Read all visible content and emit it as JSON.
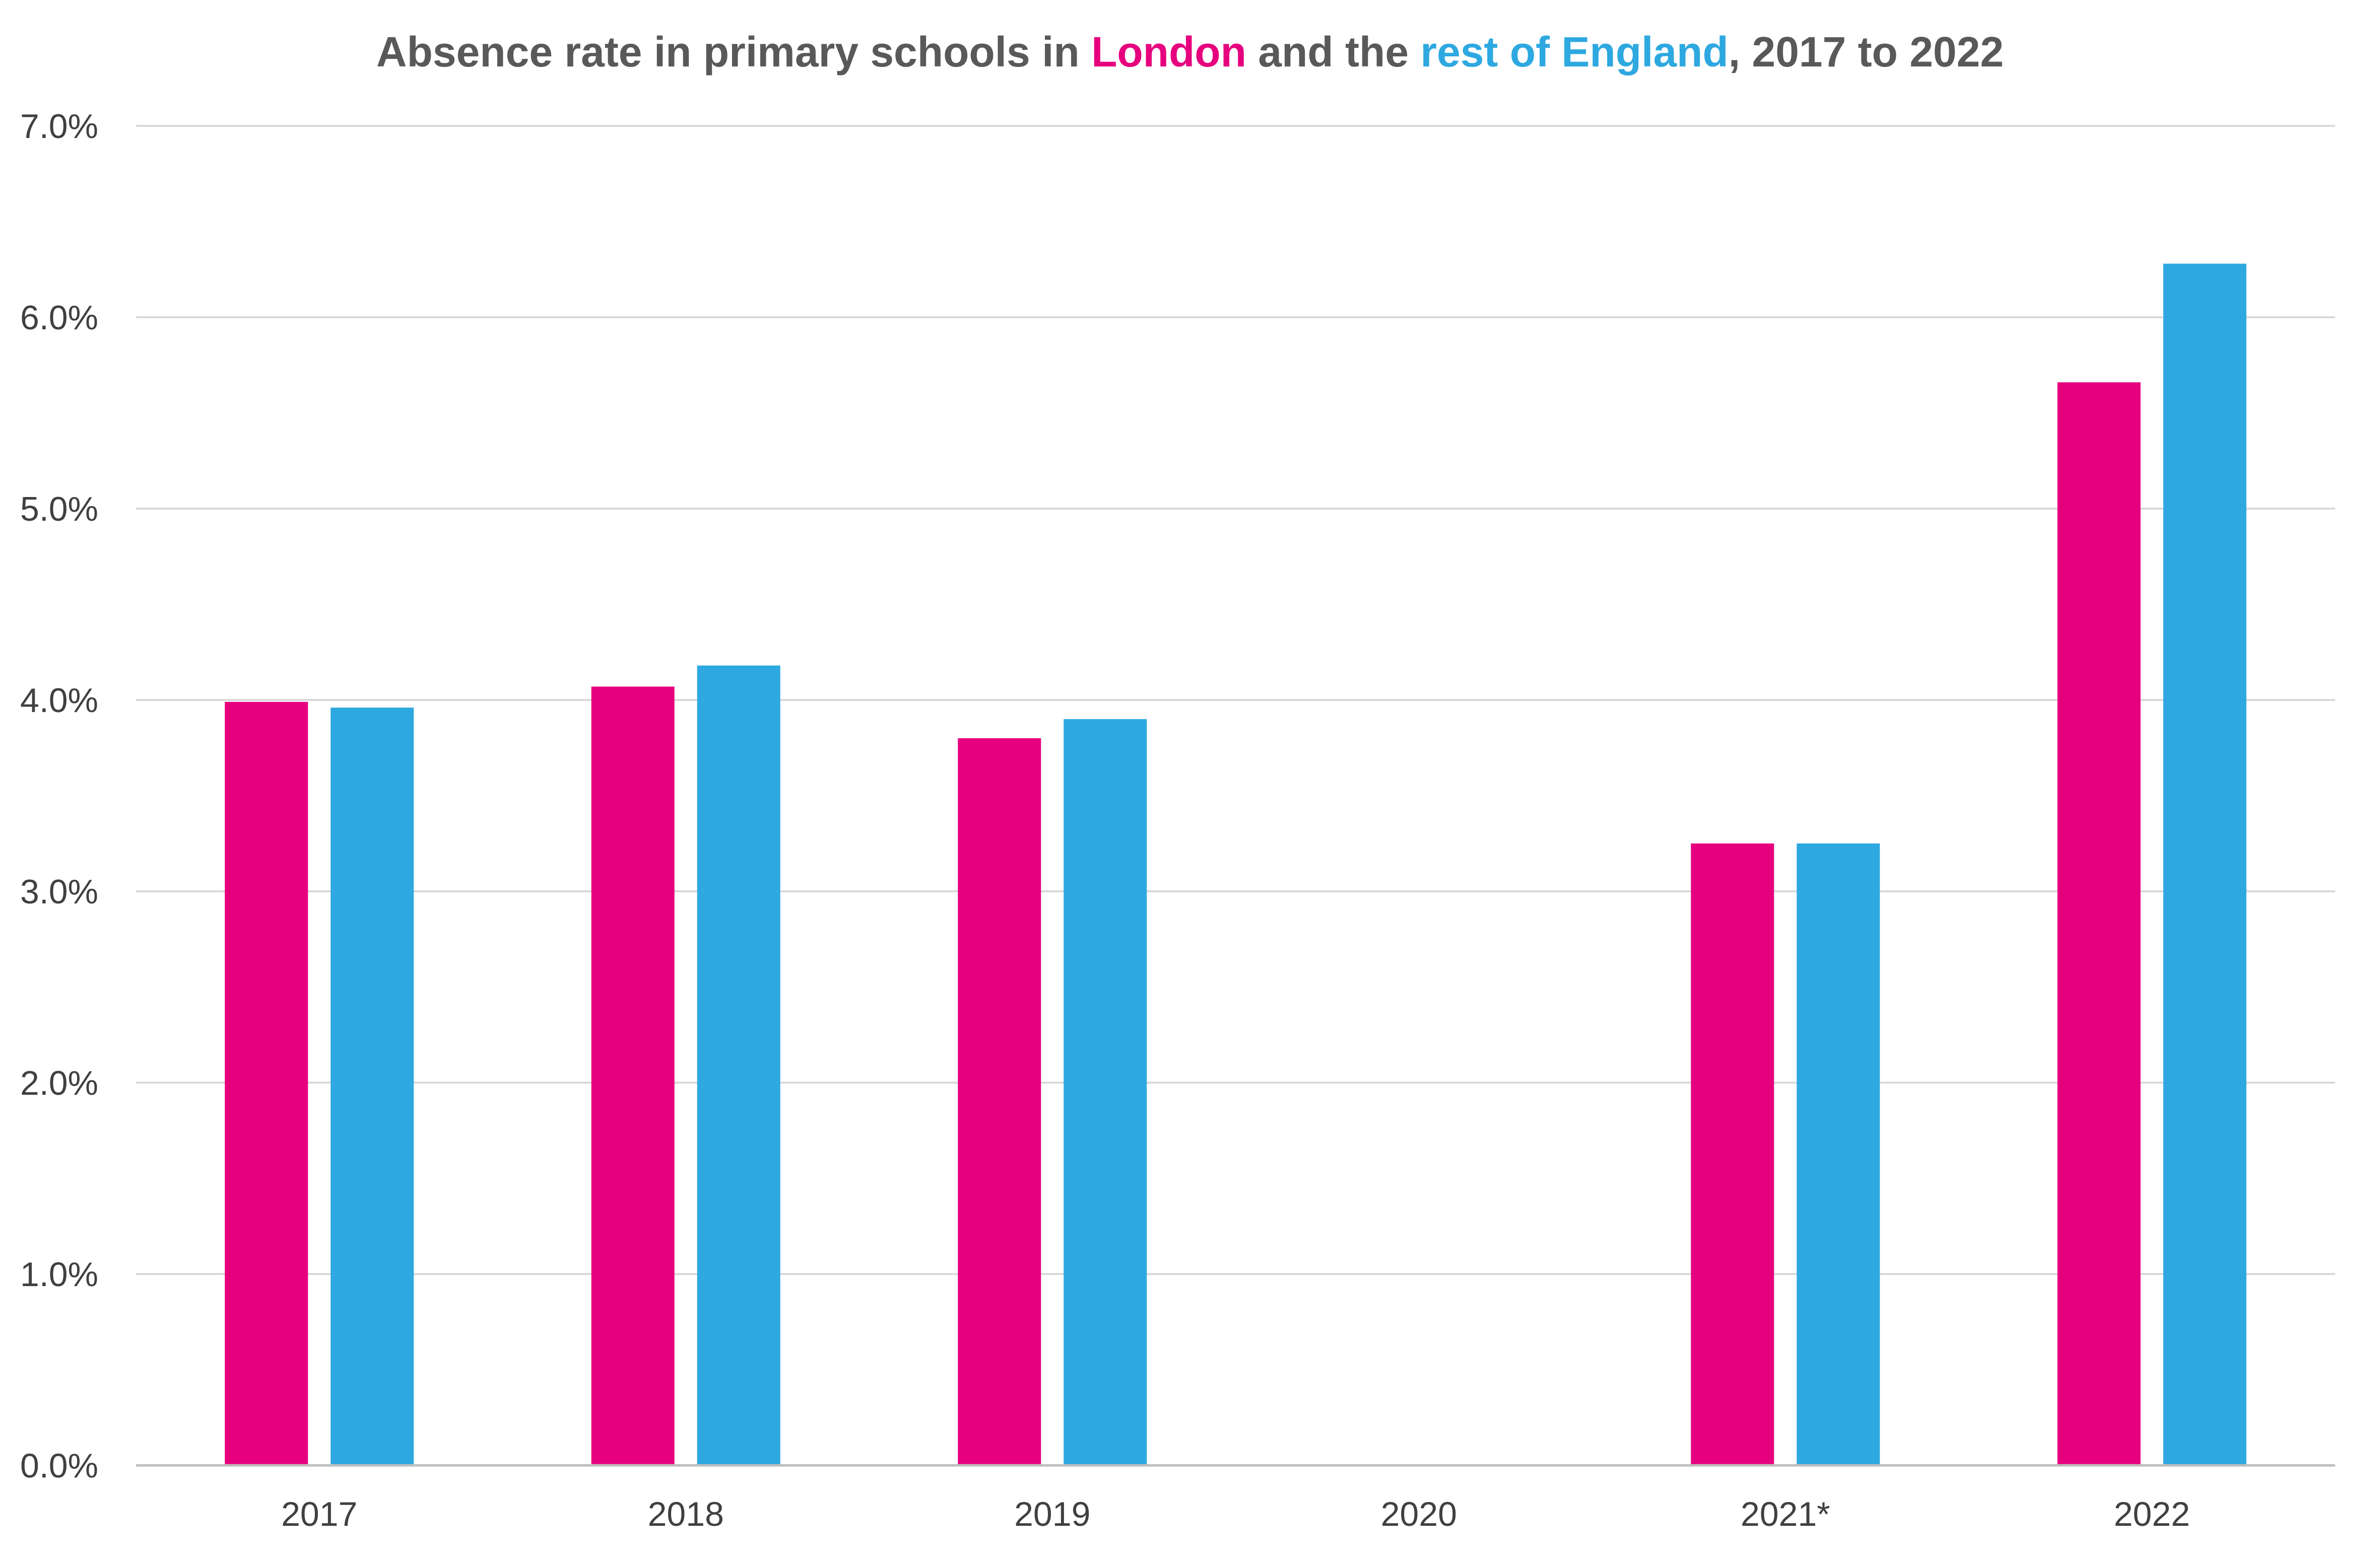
{
  "chart_data": {
    "type": "bar",
    "title": {
      "parts": [
        {
          "text": "Absence rate in primary schools in ",
          "role": "plain"
        },
        {
          "text": "London",
          "role": "s0"
        },
        {
          "text": " and the ",
          "role": "plain"
        },
        {
          "text": "rest of England",
          "role": "s1"
        },
        {
          "text": ", 2017 to 2022",
          "role": "plain"
        }
      ]
    },
    "categories": [
      "2017",
      "2018",
      "2019",
      "2020",
      "2021*",
      "2022"
    ],
    "series": [
      {
        "name": "London",
        "color": "#e6007e",
        "values": [
          3.99,
          4.07,
          3.8,
          null,
          3.25,
          5.66
        ]
      },
      {
        "name": "rest of England",
        "color": "#2ea8e0",
        "values": [
          3.96,
          4.18,
          3.9,
          null,
          3.25,
          6.28
        ]
      }
    ],
    "xlabel": "",
    "ylabel": "",
    "ylim": [
      0,
      7
    ],
    "yticks": [
      "0.0%",
      "1.0%",
      "2.0%",
      "3.0%",
      "4.0%",
      "5.0%",
      "6.0%",
      "7.0%"
    ],
    "grid": true,
    "legend": "none",
    "colors": {
      "title_text": "#595959",
      "tick_text": "#404040",
      "grid": "#d9d9d9"
    }
  }
}
